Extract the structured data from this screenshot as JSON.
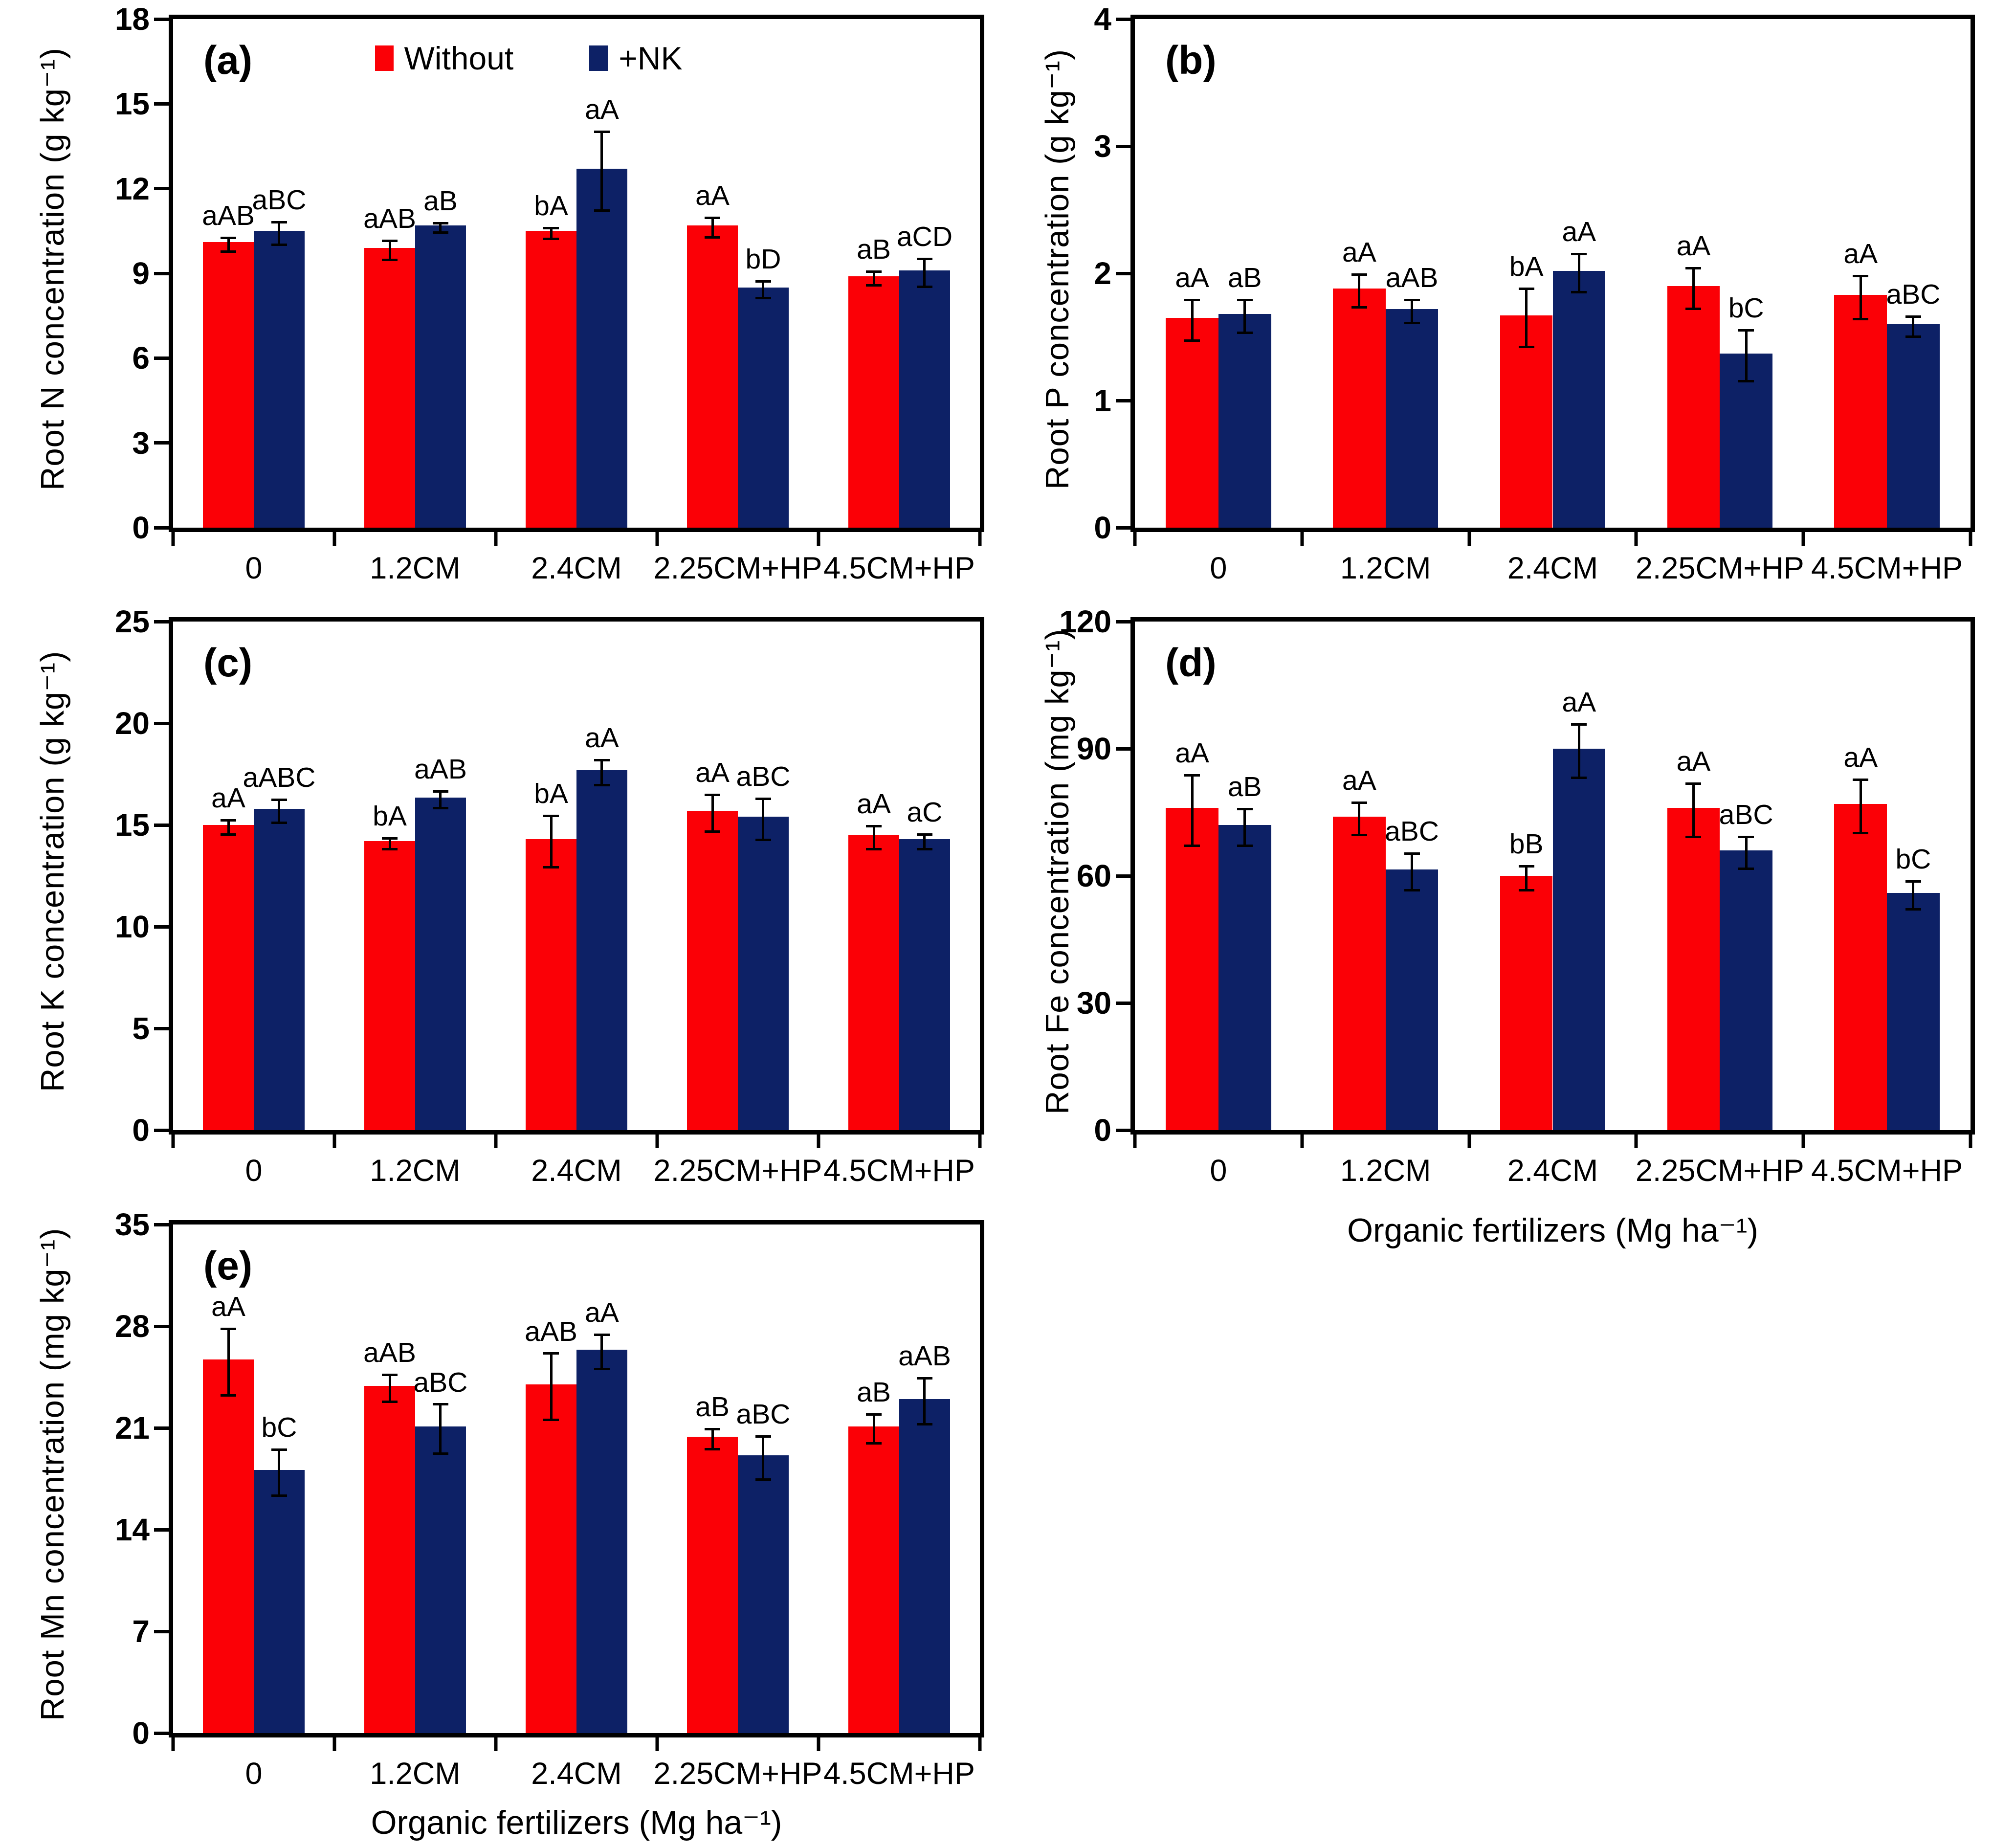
{
  "figure": {
    "background": "#ffffff",
    "axis_color": "#000000",
    "legend": {
      "items": [
        {
          "label": "Without",
          "color": "#fb0006"
        },
        {
          "label": "+NK",
          "color": "#0d2166"
        }
      ],
      "position": "top-center of panel (a)"
    }
  },
  "chart_data": [
    {
      "id": "a",
      "type": "bar",
      "panel_label": "(a)",
      "title": "",
      "ylabel": "Root N concentration (g kg⁻¹)",
      "xlabel": "",
      "ylim": [
        0,
        18
      ],
      "yticks": [
        0,
        3,
        6,
        9,
        12,
        15,
        18
      ],
      "grid": false,
      "legend_visible": true,
      "categories": [
        "0",
        "1.2CM",
        "2.4CM",
        "2.25CM+HP",
        "4.5CM+HP"
      ],
      "series": [
        {
          "name": "Without",
          "color": "#fb0006",
          "values": [
            10.1,
            9.9,
            10.5,
            10.7,
            8.9
          ],
          "errors": [
            0.2,
            0.3,
            0.15,
            0.3,
            0.2
          ],
          "letters": [
            "aAB",
            "aAB",
            "bA",
            "aA",
            "aB"
          ]
        },
        {
          "name": "+NK",
          "color": "#0d2166",
          "values": [
            10.5,
            10.7,
            12.7,
            8.5,
            9.1
          ],
          "errors": [
            0.35,
            0.12,
            1.35,
            0.25,
            0.45
          ],
          "letters": [
            "aBC",
            "aB",
            "aA",
            "bD",
            "aCD"
          ]
        }
      ]
    },
    {
      "id": "b",
      "type": "bar",
      "panel_label": "(b)",
      "title": "",
      "ylabel": "Root P concentration (g kg⁻¹)",
      "xlabel": "",
      "ylim": [
        0,
        4
      ],
      "yticks": [
        0,
        1,
        2,
        3,
        4
      ],
      "grid": false,
      "legend_visible": false,
      "categories": [
        "0",
        "1.2CM",
        "2.4CM",
        "2.25CM+HP",
        "4.5CM+HP"
      ],
      "series": [
        {
          "name": "Without",
          "color": "#fb0006",
          "values": [
            1.65,
            1.88,
            1.67,
            1.9,
            1.83
          ],
          "errors": [
            0.15,
            0.12,
            0.22,
            0.15,
            0.16
          ],
          "letters": [
            "aA",
            "aA",
            "bA",
            "aA",
            "aA"
          ]
        },
        {
          "name": "+NK",
          "color": "#0d2166",
          "values": [
            1.68,
            1.72,
            2.02,
            1.37,
            1.6
          ],
          "errors": [
            0.12,
            0.08,
            0.14,
            0.19,
            0.07
          ],
          "letters": [
            "aB",
            "aAB",
            "aA",
            "bC",
            "aBC"
          ]
        }
      ]
    },
    {
      "id": "c",
      "type": "bar",
      "panel_label": "(c)",
      "title": "",
      "ylabel": "Root K concentration (g kg⁻¹)",
      "xlabel": "",
      "ylim": [
        0,
        25
      ],
      "yticks": [
        0,
        5,
        10,
        15,
        20,
        25
      ],
      "grid": false,
      "legend_visible": false,
      "categories": [
        "0",
        "1.2CM",
        "2.4CM",
        "2.25CM+HP",
        "4.5CM+HP"
      ],
      "series": [
        {
          "name": "Without",
          "color": "#fb0006",
          "values": [
            15.0,
            14.2,
            14.3,
            15.7,
            14.5
          ],
          "errors": [
            0.3,
            0.2,
            1.2,
            0.85,
            0.5
          ],
          "letters": [
            "aA",
            "bA",
            "bA",
            "aA",
            "aA"
          ]
        },
        {
          "name": "+NK",
          "color": "#0d2166",
          "values": [
            15.8,
            16.35,
            17.7,
            15.4,
            14.3
          ],
          "errors": [
            0.5,
            0.35,
            0.55,
            0.95,
            0.3
          ],
          "letters": [
            "aABC",
            "aAB",
            "aA",
            "aBC",
            "aC"
          ]
        }
      ]
    },
    {
      "id": "d",
      "type": "bar",
      "panel_label": "(d)",
      "title": "",
      "ylabel": "Root Fe concentration (mg kg⁻¹)",
      "xlabel": "Organic fertilizers (Mg ha⁻¹)",
      "ylim": [
        0,
        120
      ],
      "yticks": [
        0,
        30,
        60,
        90,
        120
      ],
      "grid": false,
      "legend_visible": false,
      "categories": [
        "0",
        "1.2CM",
        "2.4CM",
        "2.25CM+HP",
        "4.5CM+HP"
      ],
      "series": [
        {
          "name": "Without",
          "color": "#fb0006",
          "values": [
            76,
            74,
            60,
            76,
            77
          ],
          "errors": [
            8,
            3.5,
            2.5,
            6,
            6
          ],
          "letters": [
            "aA",
            "aA",
            "bB",
            "aA",
            "aA"
          ]
        },
        {
          "name": "+NK",
          "color": "#0d2166",
          "values": [
            72,
            61.5,
            90,
            66,
            56
          ],
          "errors": [
            4,
            4,
            6,
            3.5,
            3
          ],
          "letters": [
            "aB",
            "aBC",
            "aA",
            "aBC",
            "bC"
          ]
        }
      ]
    },
    {
      "id": "e",
      "type": "bar",
      "panel_label": "(e)",
      "title": "",
      "ylabel": "Root Mn concentration (mg kg⁻¹)",
      "xlabel": "Organic fertilizers (Mg ha⁻¹)",
      "ylim": [
        0,
        35
      ],
      "yticks": [
        0,
        7,
        14,
        21,
        28,
        35
      ],
      "grid": false,
      "legend_visible": false,
      "categories": [
        "0",
        "1.2CM",
        "2.4CM",
        "2.25CM+HP",
        "4.5CM+HP"
      ],
      "series": [
        {
          "name": "Without",
          "color": "#fb0006",
          "values": [
            25.7,
            23.9,
            24.0,
            20.4,
            21.1
          ],
          "errors": [
            2.2,
            0.85,
            2.2,
            0.6,
            0.9
          ],
          "letters": [
            "aA",
            "aAB",
            "aAB",
            "aB",
            "aB"
          ]
        },
        {
          "name": "+NK",
          "color": "#0d2166",
          "values": [
            18.1,
            21.1,
            26.4,
            19.1,
            23.0
          ],
          "errors": [
            1.5,
            1.6,
            1.1,
            1.4,
            1.5
          ],
          "letters": [
            "bC",
            "aBC",
            "aA",
            "aBC",
            "aAB"
          ]
        }
      ]
    }
  ]
}
